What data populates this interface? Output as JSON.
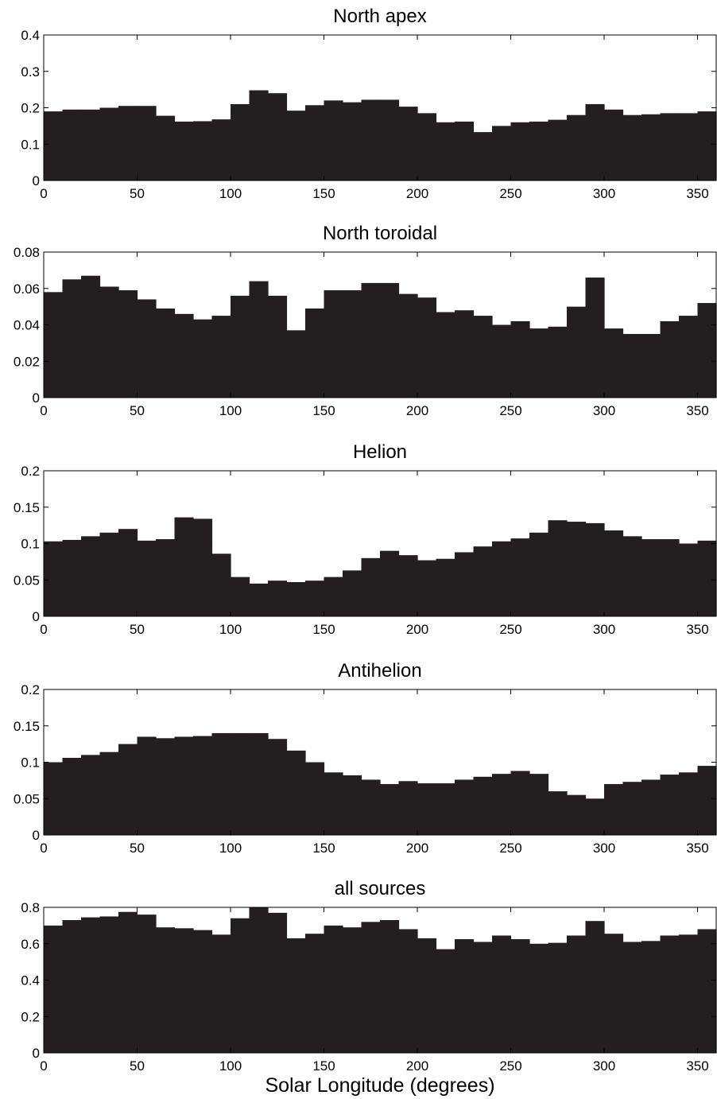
{
  "chart_data": [
    {
      "type": "bar",
      "title": "North apex",
      "xlabel": "",
      "ylabel": "",
      "xlim": [
        0,
        360
      ],
      "ylim": [
        0,
        0.4
      ],
      "xticks": [
        "0",
        "50",
        "100",
        "150",
        "200",
        "250",
        "300",
        "350"
      ],
      "yticks": [
        "0",
        "0.1",
        "0.2",
        "0.3",
        "0.4"
      ],
      "bin_width": 10,
      "bin_starts": [
        0,
        10,
        20,
        30,
        40,
        50,
        60,
        70,
        80,
        90,
        100,
        110,
        120,
        130,
        140,
        150,
        160,
        170,
        180,
        190,
        200,
        210,
        220,
        230,
        240,
        250,
        260,
        270,
        280,
        290,
        300,
        310,
        320,
        330,
        340,
        350
      ],
      "values": [
        0.19,
        0.195,
        0.195,
        0.2,
        0.205,
        0.205,
        0.178,
        0.162,
        0.163,
        0.168,
        0.21,
        0.248,
        0.24,
        0.192,
        0.207,
        0.22,
        0.215,
        0.222,
        0.222,
        0.203,
        0.185,
        0.16,
        0.162,
        0.133,
        0.15,
        0.16,
        0.162,
        0.167,
        0.18,
        0.21,
        0.195,
        0.18,
        0.182,
        0.185,
        0.185,
        0.19
      ]
    },
    {
      "type": "bar",
      "title": "North toroidal",
      "xlabel": "",
      "ylabel": "",
      "xlim": [
        0,
        360
      ],
      "ylim": [
        0,
        0.08
      ],
      "xticks": [
        "0",
        "50",
        "100",
        "150",
        "200",
        "250",
        "300",
        "350"
      ],
      "yticks": [
        "0",
        "0.02",
        "0.04",
        "0.06",
        "0.08"
      ],
      "bin_width": 10,
      "bin_starts": [
        0,
        10,
        20,
        30,
        40,
        50,
        60,
        70,
        80,
        90,
        100,
        110,
        120,
        130,
        140,
        150,
        160,
        170,
        180,
        190,
        200,
        210,
        220,
        230,
        240,
        250,
        260,
        270,
        280,
        290,
        300,
        310,
        320,
        330,
        340,
        350
      ],
      "values": [
        0.058,
        0.065,
        0.067,
        0.061,
        0.059,
        0.054,
        0.049,
        0.046,
        0.043,
        0.045,
        0.056,
        0.064,
        0.056,
        0.037,
        0.049,
        0.059,
        0.059,
        0.063,
        0.063,
        0.057,
        0.055,
        0.047,
        0.048,
        0.045,
        0.04,
        0.042,
        0.038,
        0.039,
        0.05,
        0.066,
        0.038,
        0.035,
        0.035,
        0.042,
        0.045,
        0.052
      ]
    },
    {
      "type": "bar",
      "title": "Helion",
      "xlabel": "",
      "ylabel": "",
      "xlim": [
        0,
        360
      ],
      "ylim": [
        0,
        0.2
      ],
      "xticks": [
        "0",
        "50",
        "100",
        "150",
        "200",
        "250",
        "300",
        "350"
      ],
      "yticks": [
        "0",
        "0.05",
        "0.1",
        "0.15",
        "0.2"
      ],
      "bin_width": 10,
      "bin_starts": [
        0,
        10,
        20,
        30,
        40,
        50,
        60,
        70,
        80,
        90,
        100,
        110,
        120,
        130,
        140,
        150,
        160,
        170,
        180,
        190,
        200,
        210,
        220,
        230,
        240,
        250,
        260,
        270,
        280,
        290,
        300,
        310,
        320,
        330,
        340,
        350
      ],
      "values": [
        0.103,
        0.105,
        0.11,
        0.115,
        0.12,
        0.104,
        0.106,
        0.136,
        0.134,
        0.086,
        0.054,
        0.045,
        0.049,
        0.047,
        0.049,
        0.054,
        0.063,
        0.08,
        0.09,
        0.084,
        0.077,
        0.079,
        0.088,
        0.096,
        0.103,
        0.107,
        0.115,
        0.132,
        0.13,
        0.128,
        0.118,
        0.11,
        0.106,
        0.106,
        0.1,
        0.104
      ]
    },
    {
      "type": "bar",
      "title": "Antihelion",
      "xlabel": "",
      "ylabel": "",
      "xlim": [
        0,
        360
      ],
      "ylim": [
        0,
        0.2
      ],
      "xticks": [
        "0",
        "50",
        "100",
        "150",
        "200",
        "250",
        "300",
        "350"
      ],
      "yticks": [
        "0",
        "0.05",
        "0.1",
        "0.15",
        "0.2"
      ],
      "bin_width": 10,
      "bin_starts": [
        0,
        10,
        20,
        30,
        40,
        50,
        60,
        70,
        80,
        90,
        100,
        110,
        120,
        130,
        140,
        150,
        160,
        170,
        180,
        190,
        200,
        210,
        220,
        230,
        240,
        250,
        260,
        270,
        280,
        290,
        300,
        310,
        320,
        330,
        340,
        350
      ],
      "values": [
        0.1,
        0.106,
        0.11,
        0.114,
        0.125,
        0.135,
        0.133,
        0.135,
        0.136,
        0.14,
        0.14,
        0.14,
        0.132,
        0.116,
        0.1,
        0.086,
        0.082,
        0.076,
        0.07,
        0.074,
        0.071,
        0.071,
        0.076,
        0.08,
        0.084,
        0.088,
        0.084,
        0.06,
        0.055,
        0.05,
        0.07,
        0.073,
        0.076,
        0.083,
        0.086,
        0.095
      ]
    },
    {
      "type": "bar",
      "title": "all sources",
      "xlabel": "Solar Longitude (degrees)",
      "ylabel": "",
      "xlim": [
        0,
        360
      ],
      "ylim": [
        0,
        0.8
      ],
      "xticks": [
        "0",
        "50",
        "100",
        "150",
        "200",
        "250",
        "300",
        "350"
      ],
      "yticks": [
        "0",
        "0.2",
        "0.4",
        "0.6",
        "0.8"
      ],
      "bin_width": 10,
      "bin_starts": [
        0,
        10,
        20,
        30,
        40,
        50,
        60,
        70,
        80,
        90,
        100,
        110,
        120,
        130,
        140,
        150,
        160,
        170,
        180,
        190,
        200,
        210,
        220,
        230,
        240,
        250,
        260,
        270,
        280,
        290,
        300,
        310,
        320,
        330,
        340,
        350
      ],
      "values": [
        0.7,
        0.73,
        0.745,
        0.75,
        0.775,
        0.76,
        0.69,
        0.685,
        0.675,
        0.65,
        0.74,
        0.8,
        0.77,
        0.63,
        0.655,
        0.7,
        0.69,
        0.72,
        0.73,
        0.68,
        0.63,
        0.57,
        0.625,
        0.61,
        0.645,
        0.625,
        0.6,
        0.605,
        0.645,
        0.725,
        0.655,
        0.61,
        0.615,
        0.645,
        0.65,
        0.68
      ]
    }
  ]
}
